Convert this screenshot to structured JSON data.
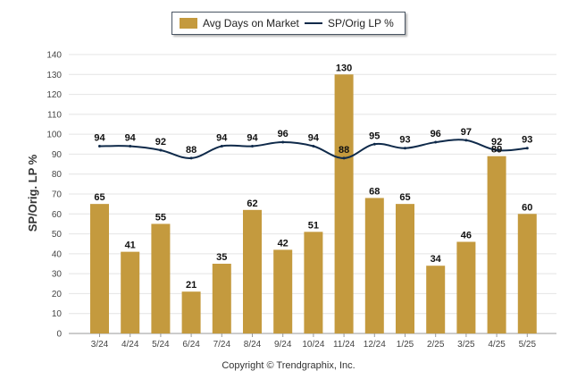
{
  "chart_data": {
    "type": "bar+line",
    "categories": [
      "3/24",
      "4/24",
      "5/24",
      "6/24",
      "7/24",
      "8/24",
      "9/24",
      "10/24",
      "11/24",
      "12/24",
      "1/25",
      "2/25",
      "3/25",
      "4/25",
      "5/25"
    ],
    "series": [
      {
        "name": "Avg Days on Market",
        "type": "bar",
        "color": "#c49a3e",
        "values": [
          65,
          41,
          55,
          21,
          35,
          62,
          42,
          51,
          130,
          68,
          65,
          34,
          46,
          89,
          60
        ]
      },
      {
        "name": "SP/Orig LP %",
        "type": "line",
        "color": "#0f2a4a",
        "values": [
          94,
          94,
          92,
          88,
          94,
          94,
          96,
          94,
          88,
          95,
          93,
          96,
          97,
          92,
          93
        ]
      }
    ],
    "ylabel": "SP/Orig. LP %",
    "ylim": [
      0,
      140
    ],
    "yticks": [
      0,
      10,
      20,
      30,
      40,
      50,
      60,
      70,
      80,
      90,
      100,
      110,
      120,
      130,
      140
    ],
    "grid": true,
    "legend_position": "top-center"
  },
  "copyright": "Copyright © Trendgraphix, Inc."
}
